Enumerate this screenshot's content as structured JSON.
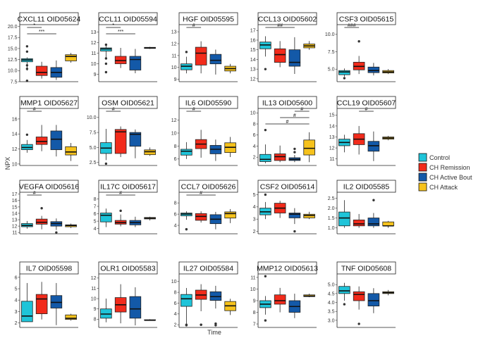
{
  "figure": {
    "ylabel": "NPX",
    "xlabel": "Time"
  },
  "legend": {
    "position": "right",
    "items": [
      {
        "label": "Control",
        "color": "#1FC4D9"
      },
      {
        "label": "CH Remission",
        "color": "#F22B1B"
      },
      {
        "label": "CH Active Bout",
        "color": "#1359A8"
      },
      {
        "label": "CH Attack",
        "color": "#F6C21C"
      }
    ]
  },
  "chart_data": [
    {
      "type": "box",
      "title": "CXCL11 OID05624",
      "ylim": [
        7.5,
        20.4
      ],
      "yticks": [
        "7.5",
        "10.0",
        "12.5",
        "15.0",
        "17.5",
        "20.0"
      ],
      "boxes": [
        [
          10,
          12,
          12.4,
          12.7,
          13,
          [
            14.3,
            15.5,
            10.4,
            11.2,
            7.7
          ]
        ],
        [
          8.2,
          8.9,
          9.6,
          11,
          12
        ],
        [
          7.9,
          8.5,
          9.6,
          10.7,
          12.3
        ],
        [
          11.8,
          12.2,
          13.2,
          13.6,
          14
        ]
      ],
      "sig": [
        {
          "a": 0,
          "b": 1,
          "label": "*",
          "row": 0
        },
        {
          "a": 0,
          "b": 2,
          "label": "***",
          "row": 1
        }
      ]
    },
    {
      "type": "box",
      "title": "CCL11 OID05594",
      "ylim": [
        8.3,
        13.7
      ],
      "yticks": [
        "9",
        "10",
        "11",
        "12",
        "13"
      ],
      "boxes": [
        [
          10.5,
          11.2,
          11.4,
          11.5,
          11.7,
          [
            11.8,
            10.5,
            10,
            9.2
          ]
        ],
        [
          9.6,
          10,
          10.3,
          10.7,
          11.5
        ],
        [
          9.1,
          9.4,
          10.4,
          10.7,
          11.4
        ],
        [
          11.4,
          11.45,
          11.5,
          11.55,
          11.6
        ]
      ],
      "sig": [
        {
          "a": 0,
          "b": 1,
          "label": "*",
          "row": 0
        },
        {
          "a": 0,
          "b": 2,
          "label": "***",
          "row": 1
        }
      ]
    },
    {
      "type": "box",
      "title": "HGF OID05595",
      "ylim": [
        8.8,
        13.6
      ],
      "yticks": [
        "9",
        "10",
        "11",
        "12",
        "13"
      ],
      "boxes": [
        [
          9.5,
          9.8,
          10.1,
          10.3,
          10.9,
          [
            11.3
          ]
        ],
        [
          9.5,
          10.2,
          11.2,
          11.7,
          12.2
        ],
        [
          9.4,
          10.3,
          10.6,
          11.1,
          11.5
        ],
        [
          9.5,
          9.7,
          9.9,
          10.1,
          10.3
        ]
      ],
      "sig": [
        {
          "a": 0,
          "b": 1,
          "label": "#",
          "row": 0
        }
      ]
    },
    {
      "type": "box",
      "title": "CCL13 OID05602",
      "ylim": [
        11.7,
        17.6
      ],
      "yticks": [
        "12",
        "13",
        "14",
        "15",
        "16",
        "17"
      ],
      "boxes": [
        [
          14.3,
          15.1,
          15.5,
          15.8,
          16.4,
          [
            13
          ]
        ],
        [
          13.2,
          13.7,
          14.5,
          15.1,
          15.9
        ],
        [
          12.5,
          13.3,
          13.7,
          15,
          16.3
        ],
        [
          15,
          15.2,
          15.4,
          15.6,
          15.9
        ]
      ],
      "sig": [
        {
          "a": 0,
          "b": 2,
          "label": "##",
          "row": 0
        }
      ]
    },
    {
      "type": "box",
      "title": "CSF3 OID05615",
      "ylim": [
        3.2,
        11.4
      ],
      "yticks": [
        "5.0",
        "7.5",
        "10.0"
      ],
      "boxes": [
        [
          3.9,
          4.2,
          4.6,
          4.8,
          5.1,
          [
            3.7
          ]
        ],
        [
          4.3,
          4.9,
          5.4,
          6,
          6.9,
          [
            9
          ]
        ],
        [
          4.1,
          4.5,
          4.8,
          5.3,
          5.9
        ],
        [
          4.3,
          4.45,
          4.6,
          4.8,
          5
        ]
      ],
      "sig": [
        {
          "a": 0,
          "b": 1,
          "label": "###",
          "row": 0
        }
      ]
    },
    {
      "type": "box",
      "title": "MMP1 OID05627",
      "ylim": [
        9.8,
        17.4
      ],
      "yticks": [
        "10",
        "12",
        "14",
        "16"
      ],
      "boxes": [
        [
          11.5,
          11.9,
          12.2,
          12.6,
          13.2,
          [
            13.9
          ]
        ],
        [
          11.7,
          12.6,
          13,
          13.6,
          15.2
        ],
        [
          11,
          11.9,
          13.3,
          14.4,
          15.2
        ],
        [
          10.4,
          11.2,
          11.6,
          12.3,
          12.8
        ]
      ],
      "sig": [
        {
          "a": 0,
          "b": 1,
          "label": "#",
          "row": 0
        }
      ]
    },
    {
      "type": "box",
      "title": "OSM OID05621",
      "ylim": [
        2,
        11.5
      ],
      "yticks": [
        "2.5",
        "5.0",
        "7.5",
        "10.0"
      ],
      "boxes": [
        [
          2.9,
          4,
          4.9,
          5.8,
          8.1,
          [
            2.3
          ]
        ],
        [
          3.4,
          4,
          7.6,
          8,
          8.5
        ],
        [
          3.2,
          5.2,
          7.2,
          7.5,
          8
        ],
        [
          3.6,
          3.8,
          4.3,
          4.6,
          5
        ]
      ],
      "sig": [
        {
          "a": 0,
          "b": 1,
          "label": "#",
          "row": 0
        }
      ]
    },
    {
      "type": "box",
      "title": "IL6 OID05590",
      "ylim": [
        5,
        13.8
      ],
      "yticks": [
        "6",
        "8",
        "10",
        "12"
      ],
      "boxes": [
        [
          6,
          6.6,
          7.2,
          7.5,
          8.6
        ],
        [
          6.2,
          7.6,
          8.3,
          9,
          10.5
        ],
        [
          5.7,
          6.8,
          7.5,
          8.1,
          9
        ],
        [
          6.3,
          7,
          7.8,
          8.5,
          9.4
        ]
      ],
      "sig": [
        {
          "a": 0,
          "b": 1,
          "label": "#",
          "row": 0
        }
      ]
    },
    {
      "type": "box",
      "title": "IL13 OID05600",
      "ylim": [
        0.5,
        10.8
      ],
      "yticks": [
        "2",
        "4",
        "6",
        "8",
        "10"
      ],
      "boxes": [
        [
          0.9,
          1.2,
          1.6,
          2.5,
          4.3,
          [
            6.9
          ]
        ],
        [
          1.1,
          1.4,
          2.1,
          2.6,
          4.1
        ],
        [
          1.1,
          1.4,
          1.6,
          1.9,
          2.4,
          [
            2.9,
            3.5
          ]
        ],
        [
          1.1,
          2.4,
          3.6,
          5.1,
          6.5
        ]
      ],
      "sig": [
        {
          "a": 0,
          "b": 3,
          "label": "#",
          "row": 2
        },
        {
          "a": 1,
          "b": 3,
          "label": "#",
          "row": 1
        },
        {
          "a": 2,
          "b": 3,
          "label": "#",
          "row": 0
        }
      ]
    },
    {
      "type": "box",
      "title": "CCL19 OID05607",
      "ylim": [
        10.4,
        15.6
      ],
      "yticks": [
        "11",
        "12",
        "13",
        "14",
        "15"
      ],
      "boxes": [
        [
          11.6,
          12.2,
          12.5,
          12.8,
          13.2
        ],
        [
          11.4,
          12.3,
          12.8,
          13.3,
          14
        ],
        [
          10.8,
          11.7,
          12.2,
          12.6,
          13.5
        ],
        [
          12.7,
          12.8,
          12.9,
          13,
          13.1
        ]
      ],
      "sig": [
        {
          "a": 1,
          "b": 2,
          "label": "#",
          "row": 0
        }
      ]
    },
    {
      "type": "box",
      "title": "VEGFA OID05616",
      "ylim": [
        10.8,
        17.3
      ],
      "yticks": [
        "11",
        "12",
        "13",
        "14",
        "15",
        "16",
        "17"
      ],
      "boxes": [
        [
          11.6,
          11.9,
          12.1,
          12.4,
          12.8
        ],
        [
          11.5,
          12.3,
          12.6,
          13.1,
          13.6,
          [
            14.8
          ]
        ],
        [
          11.4,
          12,
          12.4,
          12.7,
          13.2,
          [
            11
          ]
        ],
        [
          11.7,
          11.9,
          12.1,
          12.2,
          12.4
        ]
      ],
      "sig": [
        {
          "a": 0,
          "b": 1,
          "label": "#",
          "row": 0
        }
      ]
    },
    {
      "type": "box",
      "title": "IL17C OID05617",
      "ylim": [
        3.3,
        8.9
      ],
      "yticks": [
        "4",
        "5",
        "6",
        "7",
        "8"
      ],
      "boxes": [
        [
          4.2,
          4.9,
          5.8,
          6.1,
          6.7
        ],
        [
          4.3,
          4.6,
          4.8,
          5.1,
          5.9,
          [
            6.4
          ]
        ],
        [
          4.2,
          4.5,
          4.8,
          5.1,
          5.6
        ],
        [
          5.1,
          5.3,
          5.4,
          5.5,
          5.6
        ]
      ],
      "sig": [
        {
          "a": 0,
          "b": 2,
          "label": "#",
          "row": 0
        }
      ]
    },
    {
      "type": "box",
      "title": "CCL7 OID05626",
      "ylim": [
        2.5,
        9.9
      ],
      "yticks": [
        "4",
        "6",
        "8"
      ],
      "boxes": [
        [
          5,
          5.7,
          6,
          6.2,
          6.5,
          [
            3.3
          ]
        ],
        [
          4.5,
          4.9,
          5.6,
          6.1,
          6.5
        ],
        [
          3.3,
          4.3,
          5.1,
          5.9,
          6.4
        ],
        [
          4.4,
          5.3,
          6.1,
          6.4,
          6.9
        ]
      ],
      "sig": [
        {
          "a": 0,
          "b": 2,
          "label": "#",
          "row": 0
        }
      ]
    },
    {
      "type": "box",
      "title": "CSF2 OID05614",
      "ylim": [
        1.8,
        5.2
      ],
      "yticks": [
        "2",
        "3",
        "4",
        "5"
      ],
      "boxes": [
        [
          3,
          3.35,
          3.6,
          3.9,
          4.4,
          [
            5
          ]
        ],
        [
          3.1,
          3.5,
          3.9,
          4.3,
          4.5
        ],
        [
          2.6,
          3.1,
          3.4,
          3.5,
          3.9,
          [
            2
          ]
        ],
        [
          3,
          3.1,
          3.3,
          3.4,
          3.6
        ]
      ],
      "sig": []
    },
    {
      "type": "box",
      "title": "IL2 OID05585",
      "ylim": [
        0.7,
        2.8
      ],
      "yticks": [
        "1.0",
        "1.5",
        "2.0",
        "2.5"
      ],
      "boxes": [
        [
          1,
          1.1,
          1.5,
          1.8,
          2.4
        ],
        [
          1,
          1.1,
          1.2,
          1.4,
          1.7
        ],
        [
          1,
          1.1,
          1.2,
          1.5,
          1.75,
          [
            2.4
          ]
        ],
        [
          1,
          1.1,
          1.1,
          1.3,
          1.35
        ]
      ],
      "sig": []
    },
    {
      "type": "box",
      "title": "IL7 OID05598",
      "ylim": [
        1.6,
        6.3
      ],
      "yticks": [
        "2",
        "3",
        "4",
        "5",
        "6"
      ],
      "boxes": [
        [
          2.1,
          2.1,
          2.6,
          3.9,
          5.5
        ],
        [
          2.3,
          2.8,
          4.1,
          4.5,
          5.6
        ],
        [
          1.8,
          3.3,
          3.8,
          4.4,
          5.5
        ],
        [
          2.2,
          2.3,
          2.4,
          2.7,
          2.8
        ]
      ],
      "sig": []
    },
    {
      "type": "box",
      "title": "OLR1 OID05583",
      "ylim": [
        7.2,
        12.4
      ],
      "yticks": [
        "8",
        "9",
        "10",
        "11",
        "12"
      ],
      "boxes": [
        [
          7.7,
          8.1,
          8.5,
          9,
          10
        ],
        [
          7.6,
          8.7,
          9.4,
          10.1,
          11.4
        ],
        [
          7.4,
          8.1,
          9,
          10.2,
          11.1
        ],
        [
          7.9,
          7.9,
          7.9,
          7.95,
          8
        ]
      ],
      "sig": []
    },
    {
      "type": "box",
      "title": "IL27 OID05584",
      "ylim": [
        1.5,
        11.4
      ],
      "yticks": [
        "2",
        "4",
        "6",
        "8",
        "10"
      ],
      "boxes": [
        [
          2.2,
          5.4,
          6.8,
          7.6,
          8.8,
          [
            2,
            1.9
          ]
        ],
        [
          4.5,
          6.7,
          7.5,
          8.4,
          9.5,
          [
            2,
            2
          ]
        ],
        [
          5,
          6.5,
          7.2,
          8.1,
          9.2,
          [
            2.2,
            1.9
          ]
        ],
        [
          3.8,
          4.6,
          5.5,
          6.3,
          6.8
        ]
      ],
      "sig": []
    },
    {
      "type": "box",
      "title": "MMP12 OID05613",
      "ylim": [
        6.7,
        11.3
      ],
      "yticks": [
        "7",
        "8",
        "9",
        "10",
        "11"
      ],
      "boxes": [
        [
          7.8,
          8.4,
          8.7,
          9,
          9.4,
          [
            7.3,
            11.1
          ]
        ],
        [
          8,
          8.7,
          9,
          9.5,
          10.1
        ],
        [
          7.5,
          8,
          8.5,
          9,
          9.6
        ],
        [
          9.3,
          9.35,
          9.4,
          9.5,
          9.6
        ]
      ],
      "sig": []
    },
    {
      "type": "box",
      "title": "TNF OID05608",
      "ylim": [
        2.6,
        5.6
      ],
      "yticks": [
        "3.0",
        "3.5",
        "4.0",
        "4.5",
        "5.0"
      ],
      "boxes": [
        [
          4.1,
          4.5,
          4.65,
          4.9,
          5.1,
          [
            3.9
          ]
        ],
        [
          3.6,
          4.1,
          4.45,
          4.6,
          4.9,
          [
            2.8
          ]
        ],
        [
          3.4,
          3.8,
          4.1,
          4.5,
          4.8
        ],
        [
          4.4,
          4.5,
          4.55,
          4.6,
          4.7
        ]
      ],
      "sig": []
    }
  ]
}
